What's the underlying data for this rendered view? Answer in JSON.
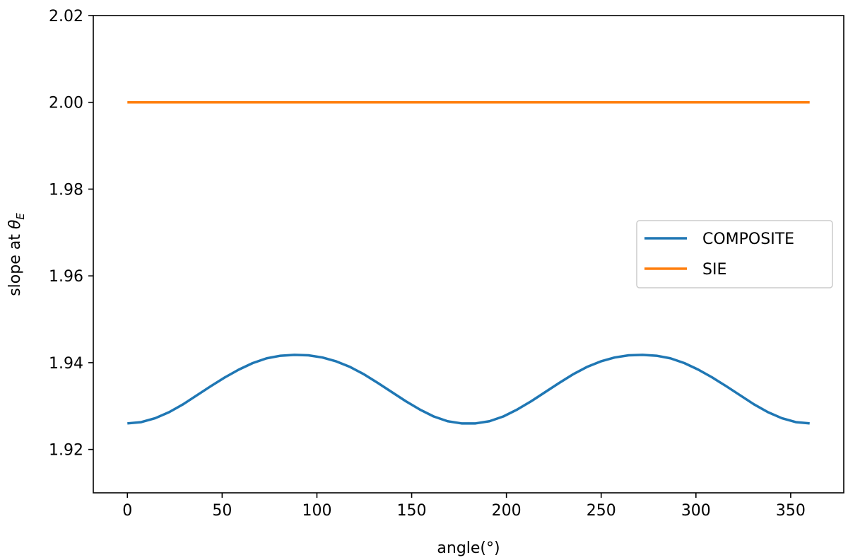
{
  "chart_data": {
    "type": "line",
    "xlabel": "angle(°)",
    "ylabel_prefix": "slope at ",
    "ylabel_symbol": "θ",
    "ylabel_subscript": "E",
    "xlim": [
      -18,
      378
    ],
    "ylim": [
      1.91,
      2.02
    ],
    "xticks": [
      0,
      50,
      100,
      150,
      200,
      250,
      300,
      350
    ],
    "xtick_labels": [
      "0",
      "50",
      "100",
      "150",
      "200",
      "250",
      "300",
      "350"
    ],
    "yticks": [
      1.92,
      1.94,
      1.96,
      1.98,
      2.0,
      2.02
    ],
    "ytick_labels": [
      "1.92",
      "1.94",
      "1.96",
      "1.98",
      "2.00",
      "2.02"
    ],
    "grid": false,
    "legend_position": "center-right",
    "series": [
      {
        "name": "COMPOSITE",
        "color": "#1f77b4",
        "x": [
          0,
          7.35,
          14.69,
          22.04,
          29.39,
          36.73,
          44.08,
          51.43,
          58.78,
          66.12,
          73.47,
          80.82,
          88.16,
          95.51,
          102.86,
          110.2,
          117.55,
          124.9,
          132.24,
          139.59,
          146.94,
          154.29,
          161.63,
          168.98,
          176.33,
          183.67,
          191.02,
          198.37,
          205.71,
          213.06,
          220.41,
          227.76,
          235.1,
          242.45,
          249.8,
          257.14,
          264.49,
          271.84,
          279.18,
          286.53,
          293.88,
          301.22,
          308.57,
          315.92,
          323.27,
          330.61,
          337.96,
          345.31,
          352.65,
          360
        ],
        "y": [
          1.926,
          1.9263,
          1.9272,
          1.9286,
          1.9304,
          1.9325,
          1.9346,
          1.9366,
          1.9384,
          1.9399,
          1.941,
          1.9416,
          1.9418,
          1.9417,
          1.9412,
          1.9403,
          1.939,
          1.9373,
          1.9353,
          1.9332,
          1.9311,
          1.9292,
          1.9276,
          1.9265,
          1.926,
          1.926,
          1.9265,
          1.9276,
          1.9292,
          1.9311,
          1.9332,
          1.9353,
          1.9373,
          1.939,
          1.9403,
          1.9412,
          1.9417,
          1.9418,
          1.9416,
          1.941,
          1.9399,
          1.9384,
          1.9366,
          1.9346,
          1.9325,
          1.9304,
          1.9286,
          1.9272,
          1.9263,
          1.926
        ]
      },
      {
        "name": "SIE",
        "color": "#ff7f0e",
        "x": [
          0,
          360
        ],
        "y": [
          2.0,
          2.0
        ]
      }
    ]
  }
}
